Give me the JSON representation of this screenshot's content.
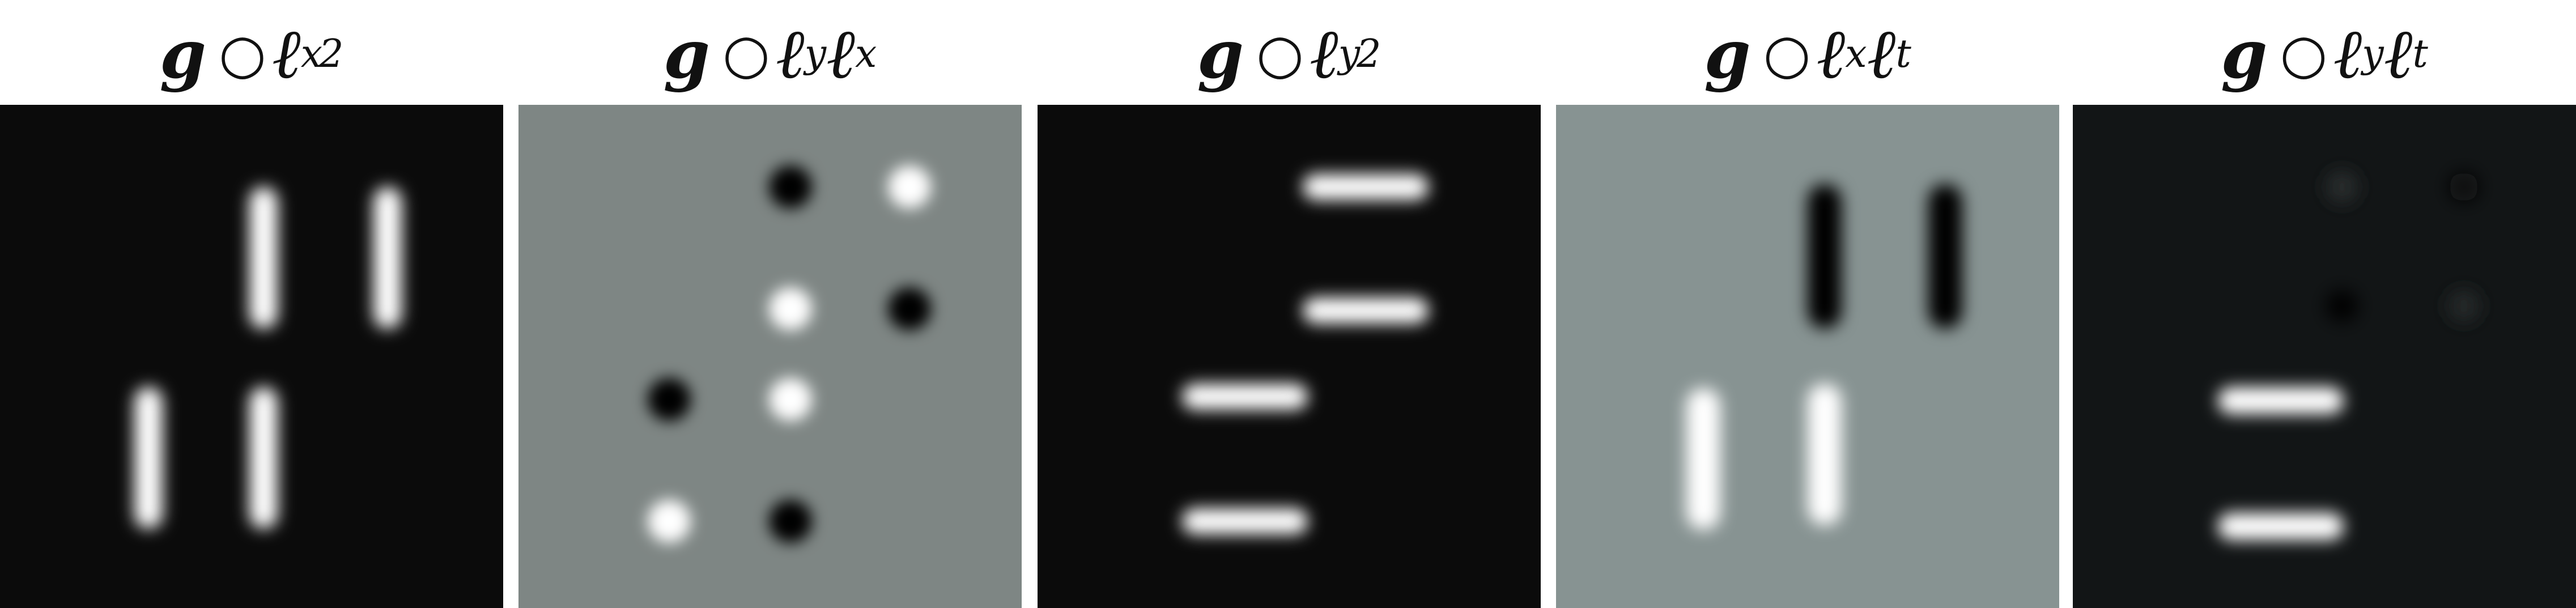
{
  "panels": [
    {
      "name": "gxx",
      "title": {
        "prefix": "g",
        "op": "○",
        "parts": [
          {
            "ell": "ℓ",
            "sub": "x",
            "sup": "2"
          }
        ]
      },
      "background": "#0b0b0b"
    },
    {
      "name": "gyx",
      "title": {
        "prefix": "g",
        "op": "○",
        "parts": [
          {
            "ell": "ℓ",
            "sub": "y"
          },
          {
            "ell": "ℓ",
            "sub": "x"
          }
        ]
      },
      "background": "#7e8684"
    },
    {
      "name": "gyy",
      "title": {
        "prefix": "g",
        "op": "○",
        "parts": [
          {
            "ell": "ℓ",
            "sub": "y",
            "sup": "2"
          }
        ]
      },
      "background": "#0b0b0b"
    },
    {
      "name": "gxt",
      "title": {
        "prefix": "g",
        "op": "○",
        "parts": [
          {
            "ell": "ℓ",
            "sub": "x"
          },
          {
            "ell": "ℓ",
            "sub": "t"
          }
        ]
      },
      "background": "#879392"
    },
    {
      "name": "gyt",
      "title": {
        "prefix": "g",
        "op": "○",
        "parts": [
          {
            "ell": "ℓ",
            "sub": "y"
          },
          {
            "ell": "ℓ",
            "sub": "t"
          }
        ]
      },
      "background": "#121516"
    }
  ]
}
